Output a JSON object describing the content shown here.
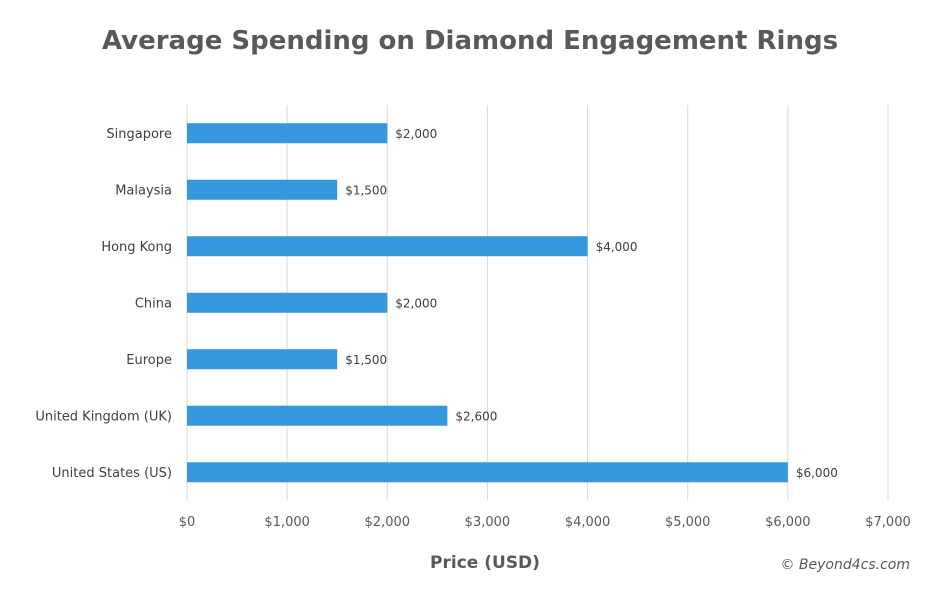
{
  "chart_data": {
    "type": "bar",
    "orientation": "horizontal",
    "title": "Average Spending on Diamond Engagement Rings",
    "xlabel": "Price (USD)",
    "ylabel": "",
    "categories": [
      "Singapore",
      "Malaysia",
      "Hong Kong",
      "China",
      "Europe",
      "United Kingdom (UK)",
      "United States (US)"
    ],
    "values": [
      2000,
      1500,
      4000,
      2000,
      1500,
      2600,
      6000
    ],
    "data_labels": [
      "$2,000",
      "$1,500",
      "$4,000",
      "$2,000",
      "$1,500",
      "$2,600",
      "$6,000"
    ],
    "xlim": [
      0,
      7000
    ],
    "x_ticks": [
      0,
      1000,
      2000,
      3000,
      4000,
      5000,
      6000,
      7000
    ],
    "x_tick_labels": [
      "$0",
      "$1,000",
      "$2,000",
      "$3,000",
      "$4,000",
      "$5,000",
      "$6,000",
      "$7,000"
    ],
    "grid": "vertical",
    "legend": "none",
    "bar_color": "#3597dd",
    "gridline_color": "#d9d9d9"
  },
  "watermark": "© Beyond4cs.com"
}
